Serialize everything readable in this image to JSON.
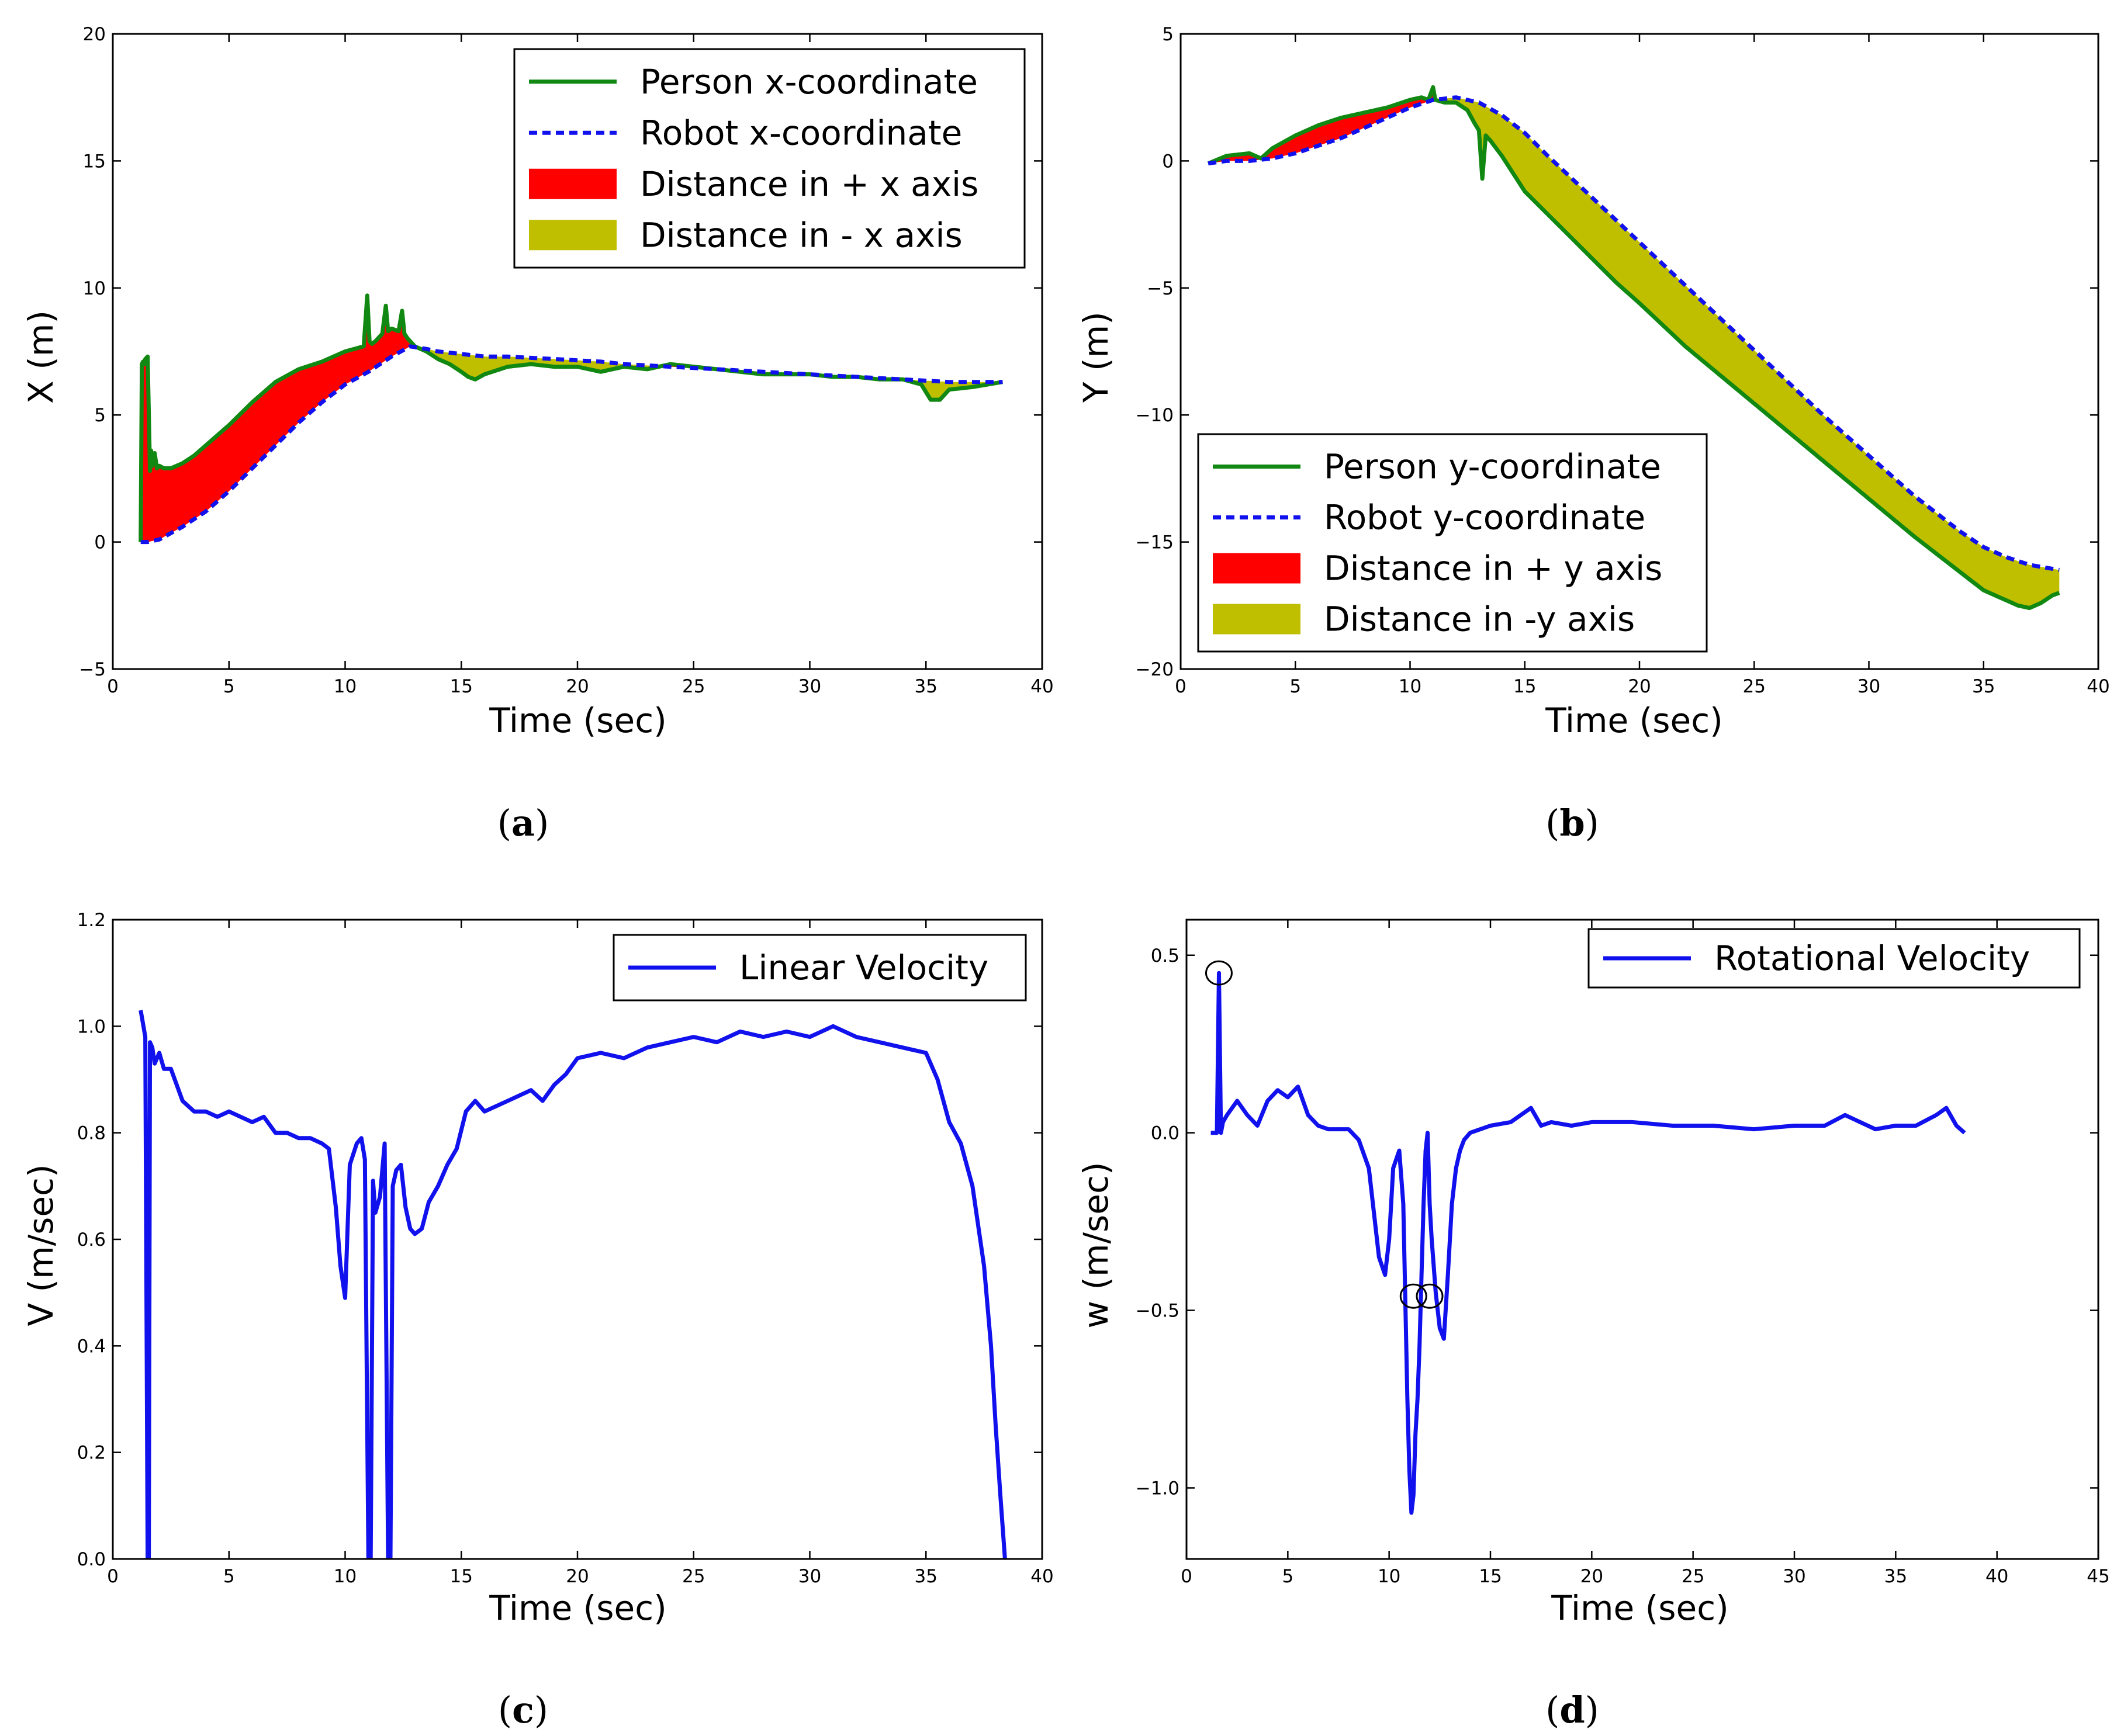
{
  "colors": {
    "person": "#118811",
    "robot": "#1111ee",
    "dist_pos": "#ff0000",
    "dist_neg": "#bfbf00",
    "velocity": "#1111ee"
  },
  "chart_data": [
    {
      "id": "a",
      "type": "line",
      "caption_open": "(",
      "caption_letter": "a",
      "caption_close": ")",
      "xlabel": "Time (sec)",
      "ylabel": "X (m)",
      "xlim": [
        0,
        40
      ],
      "ylim": [
        -5,
        20
      ],
      "xticks": [
        0,
        5,
        10,
        15,
        20,
        25,
        30,
        35,
        40
      ],
      "yticks": [
        -5,
        0,
        5,
        10,
        15,
        20
      ],
      "ytick_labels": [
        "−5",
        "0",
        "5",
        "10",
        "15",
        "20"
      ],
      "legend_loc": "top-right",
      "legend": [
        {
          "label": "Person x-coordinate",
          "kind": "solid",
          "color_key": "person"
        },
        {
          "label": "Robot x-coordinate",
          "kind": "dashed",
          "color_key": "robot"
        },
        {
          "label": "Distance in + x axis",
          "kind": "patch",
          "color_key": "dist_pos"
        },
        {
          "label": "Distance in - x axis",
          "kind": "patch",
          "color_key": "dist_neg"
        }
      ],
      "series": [
        {
          "name": "Person x-coordinate",
          "style": "solid",
          "color_key": "person",
          "x": [
            1.2,
            1.25,
            1.3,
            1.35,
            1.4,
            1.5,
            1.6,
            1.65,
            1.7,
            1.8,
            1.9,
            2.0,
            2.2,
            2.5,
            3,
            3.5,
            4,
            5,
            6,
            7,
            8,
            9,
            10,
            10.8,
            10.95,
            11.05,
            11.15,
            11.3,
            11.6,
            11.75,
            11.85,
            12.0,
            12.3,
            12.45,
            12.55,
            12.7,
            13,
            13.5,
            14,
            14.5,
            15,
            15.3,
            15.6,
            16,
            17,
            18,
            19,
            20,
            21,
            22,
            23,
            24,
            25,
            26,
            27,
            28,
            29,
            30,
            31,
            32,
            33,
            34,
            34.8,
            35.2,
            35.6,
            36,
            37,
            38.3
          ],
          "y": [
            0,
            7.0,
            7.1,
            7.0,
            7.2,
            7.3,
            2.8,
            3.6,
            3.0,
            3.5,
            2.9,
            3.0,
            2.9,
            2.9,
            3.1,
            3.4,
            3.8,
            4.6,
            5.5,
            6.3,
            6.8,
            7.1,
            7.5,
            7.7,
            9.7,
            7.9,
            7.8,
            7.9,
            8.2,
            9.3,
            8.3,
            8.4,
            8.3,
            9.1,
            8.2,
            8.0,
            7.7,
            7.5,
            7.2,
            7.0,
            6.7,
            6.5,
            6.4,
            6.6,
            6.9,
            7.0,
            6.9,
            6.9,
            6.7,
            6.9,
            6.8,
            7.0,
            6.9,
            6.8,
            6.7,
            6.6,
            6.6,
            6.6,
            6.5,
            6.5,
            6.4,
            6.4,
            6.2,
            5.6,
            5.6,
            6.0,
            6.1,
            6.3
          ]
        },
        {
          "name": "Robot x-coordinate",
          "style": "dashed",
          "color_key": "robot",
          "x": [
            1.2,
            1.5,
            2,
            3,
            4,
            5,
            6,
            7,
            8,
            9,
            10,
            11,
            12,
            12.8,
            13.5,
            14,
            15,
            16,
            17,
            18,
            19,
            20,
            21,
            22,
            23,
            24,
            25,
            26,
            27,
            28,
            29,
            30,
            31,
            32,
            33,
            34,
            35,
            36,
            37,
            38.3
          ],
          "y": [
            0,
            0,
            0.1,
            0.6,
            1.2,
            2.0,
            2.9,
            3.8,
            4.7,
            5.5,
            6.2,
            6.7,
            7.3,
            7.7,
            7.6,
            7.5,
            7.4,
            7.3,
            7.3,
            7.25,
            7.2,
            7.15,
            7.1,
            7.0,
            6.95,
            6.9,
            6.85,
            6.8,
            6.75,
            6.7,
            6.65,
            6.6,
            6.55,
            6.5,
            6.45,
            6.4,
            6.35,
            6.3,
            6.3,
            6.3
          ]
        }
      ]
    },
    {
      "id": "b",
      "type": "line",
      "caption_open": "(",
      "caption_letter": "b",
      "caption_close": ")",
      "xlabel": "Time (sec)",
      "ylabel": "Y (m)",
      "xlim": [
        0,
        40
      ],
      "ylim": [
        -20,
        5
      ],
      "xticks": [
        0,
        5,
        10,
        15,
        20,
        25,
        30,
        35,
        40
      ],
      "yticks": [
        -20,
        -15,
        -10,
        -5,
        0,
        5
      ],
      "ytick_labels": [
        "−20",
        "−15",
        "−10",
        "−5",
        "0",
        "5"
      ],
      "legend_loc": "lower-left",
      "legend": [
        {
          "label": "Person y-coordinate",
          "kind": "solid",
          "color_key": "person"
        },
        {
          "label": "Robot y-coordinate",
          "kind": "dashed",
          "color_key": "robot"
        },
        {
          "label": "Distance in + y axis",
          "kind": "patch",
          "color_key": "dist_pos"
        },
        {
          "label": "Distance in -y axis",
          "kind": "patch",
          "color_key": "dist_neg"
        }
      ],
      "series": [
        {
          "name": "Person y-coordinate",
          "style": "solid",
          "color_key": "person",
          "x": [
            1.2,
            2,
            3,
            3.5,
            4,
            5,
            6,
            7,
            8,
            9,
            10,
            10.5,
            10.8,
            11.0,
            11.1,
            11.5,
            12,
            12.5,
            12.8,
            13.0,
            13.15,
            13.3,
            13.5,
            14,
            15,
            16,
            17,
            18,
            19,
            20,
            22,
            24,
            26,
            28,
            30,
            32,
            34,
            35,
            36,
            36.5,
            37,
            37.5,
            38,
            38.3
          ],
          "y": [
            -0.1,
            0.2,
            0.3,
            0.1,
            0.5,
            1.0,
            1.4,
            1.7,
            1.9,
            2.1,
            2.4,
            2.5,
            2.4,
            2.9,
            2.4,
            2.3,
            2.3,
            2.0,
            1.5,
            1.2,
            -0.7,
            1.0,
            0.8,
            0.2,
            -1.2,
            -2.1,
            -3.0,
            -3.9,
            -4.8,
            -5.6,
            -7.3,
            -8.8,
            -10.3,
            -11.8,
            -13.3,
            -14.8,
            -16.2,
            -16.9,
            -17.3,
            -17.5,
            -17.6,
            -17.4,
            -17.1,
            -17.0
          ]
        },
        {
          "name": "Robot y-coordinate",
          "style": "dashed",
          "color_key": "robot",
          "x": [
            1.2,
            2,
            3,
            4,
            5,
            6,
            7,
            8,
            9,
            10,
            11,
            12,
            13,
            14,
            15,
            16,
            18,
            20,
            22,
            24,
            26,
            28,
            30,
            32,
            34,
            35,
            36,
            37,
            38.3
          ],
          "y": [
            -0.1,
            0.0,
            0.0,
            0.1,
            0.3,
            0.6,
            0.9,
            1.3,
            1.7,
            2.1,
            2.4,
            2.5,
            2.3,
            1.8,
            1.1,
            0.2,
            -1.5,
            -3.2,
            -4.9,
            -6.6,
            -8.3,
            -10.0,
            -11.6,
            -13.2,
            -14.6,
            -15.2,
            -15.6,
            -15.9,
            -16.1
          ]
        }
      ]
    },
    {
      "id": "c",
      "type": "line",
      "caption_open": "(",
      "caption_letter": "c",
      "caption_close": ")",
      "xlabel": "Time (sec)",
      "ylabel": "V (m/sec)",
      "xlim": [
        0,
        40
      ],
      "ylim": [
        0.0,
        1.2
      ],
      "xticks": [
        0,
        5,
        10,
        15,
        20,
        25,
        30,
        35,
        40
      ],
      "yticks": [
        0.0,
        0.2,
        0.4,
        0.6,
        0.8,
        1.0,
        1.2
      ],
      "ytick_labels": [
        "0.0",
        "0.2",
        "0.4",
        "0.6",
        "0.8",
        "1.0",
        "1.2"
      ],
      "legend_loc": "top-right",
      "legend": [
        {
          "label": "Linear Velocity",
          "kind": "solid",
          "color_key": "velocity"
        }
      ],
      "series": [
        {
          "name": "Linear Velocity",
          "style": "solid",
          "color_key": "velocity",
          "x": [
            1.2,
            1.4,
            1.5,
            1.55,
            1.6,
            1.7,
            1.8,
            2.0,
            2.2,
            2.5,
            3,
            3.5,
            4,
            4.5,
            5,
            5.5,
            6,
            6.5,
            7,
            7.5,
            8,
            8.5,
            9,
            9.3,
            9.6,
            9.8,
            10.0,
            10.2,
            10.5,
            10.7,
            10.85,
            11.0,
            11.05,
            11.1,
            11.2,
            11.3,
            11.5,
            11.7,
            11.85,
            11.95,
            12.05,
            12.2,
            12.4,
            12.6,
            12.8,
            13.0,
            13.3,
            13.6,
            14,
            14.4,
            14.8,
            15.2,
            15.6,
            16,
            17,
            18,
            18.5,
            19,
            19.5,
            20,
            21,
            22,
            23,
            24,
            25,
            26,
            27,
            28,
            29,
            30,
            31,
            32,
            33,
            34,
            35,
            35.5,
            36,
            36.5,
            37,
            37.5,
            37.8,
            38.0,
            38.2,
            38.4
          ],
          "y": [
            1.03,
            0.98,
            0.0,
            0.0,
            0.97,
            0.96,
            0.93,
            0.95,
            0.92,
            0.92,
            0.86,
            0.84,
            0.84,
            0.83,
            0.84,
            0.83,
            0.82,
            0.83,
            0.8,
            0.8,
            0.79,
            0.79,
            0.78,
            0.77,
            0.66,
            0.55,
            0.49,
            0.74,
            0.78,
            0.79,
            0.75,
            0.0,
            0.0,
            0.0,
            0.71,
            0.65,
            0.68,
            0.78,
            0.0,
            0.0,
            0.7,
            0.73,
            0.74,
            0.66,
            0.62,
            0.61,
            0.62,
            0.67,
            0.7,
            0.74,
            0.77,
            0.84,
            0.86,
            0.84,
            0.86,
            0.88,
            0.86,
            0.89,
            0.91,
            0.94,
            0.95,
            0.94,
            0.96,
            0.97,
            0.98,
            0.97,
            0.99,
            0.98,
            0.99,
            0.98,
            1.0,
            0.98,
            0.97,
            0.96,
            0.95,
            0.9,
            0.82,
            0.78,
            0.7,
            0.55,
            0.4,
            0.25,
            0.12,
            0.0
          ]
        }
      ]
    },
    {
      "id": "d",
      "type": "line",
      "caption_open": "(",
      "caption_letter": "d",
      "caption_close": ")",
      "xlabel": "Time (sec)",
      "ylabel": "w (m/sec)",
      "xlim": [
        0,
        45
      ],
      "ylim": [
        -1.2,
        0.6
      ],
      "xticks": [
        0,
        5,
        10,
        15,
        20,
        25,
        30,
        35,
        40,
        45
      ],
      "yticks": [
        -1.0,
        -0.5,
        0.0,
        0.5
      ],
      "ytick_labels": [
        "−1.0",
        "−0.5",
        "0.0",
        "0.5"
      ],
      "legend_loc": "top-right",
      "legend": [
        {
          "label": "Rotational Velocity",
          "kind": "solid",
          "color_key": "velocity"
        }
      ],
      "annotations": [
        {
          "type": "circle",
          "x": 1.6,
          "y": 0.45
        },
        {
          "type": "circle",
          "x": 11.2,
          "y": -0.46
        },
        {
          "type": "circle",
          "x": 12.0,
          "y": -0.46
        }
      ],
      "series": [
        {
          "name": "Rotational Velocity",
          "style": "solid",
          "color_key": "velocity",
          "x": [
            1.2,
            1.5,
            1.6,
            1.7,
            1.8,
            2.0,
            2.5,
            3.0,
            3.5,
            4.0,
            4.5,
            5.0,
            5.5,
            6.0,
            6.5,
            7.0,
            8.0,
            8.5,
            9.0,
            9.5,
            9.8,
            10.0,
            10.2,
            10.5,
            10.7,
            10.9,
            11.0,
            11.1,
            11.2,
            11.3,
            11.4,
            11.5,
            11.6,
            11.7,
            11.8,
            11.9,
            12.0,
            12.1,
            12.3,
            12.5,
            12.7,
            12.9,
            13.1,
            13.3,
            13.5,
            13.7,
            14.0,
            14.5,
            15.0,
            16.0,
            17.0,
            17.5,
            18.0,
            19.0,
            20.0,
            22.0,
            24.0,
            26.0,
            28.0,
            30.0,
            31.5,
            32.5,
            34.0,
            35.0,
            36.0,
            37.0,
            37.5,
            38.0,
            38.4
          ],
          "y": [
            0.0,
            0.0,
            0.45,
            0.0,
            0.03,
            0.05,
            0.09,
            0.05,
            0.02,
            0.09,
            0.12,
            0.1,
            0.13,
            0.05,
            0.02,
            0.01,
            0.01,
            -0.02,
            -0.1,
            -0.35,
            -0.4,
            -0.3,
            -0.1,
            -0.05,
            -0.2,
            -0.75,
            -0.95,
            -1.07,
            -1.02,
            -0.85,
            -0.75,
            -0.6,
            -0.4,
            -0.2,
            -0.05,
            0.0,
            -0.2,
            -0.3,
            -0.45,
            -0.55,
            -0.58,
            -0.4,
            -0.2,
            -0.1,
            -0.05,
            -0.02,
            0.0,
            0.01,
            0.02,
            0.03,
            0.07,
            0.02,
            0.03,
            0.02,
            0.03,
            0.03,
            0.02,
            0.02,
            0.01,
            0.02,
            0.02,
            0.05,
            0.01,
            0.02,
            0.02,
            0.05,
            0.07,
            0.02,
            0.0
          ]
        }
      ]
    }
  ]
}
